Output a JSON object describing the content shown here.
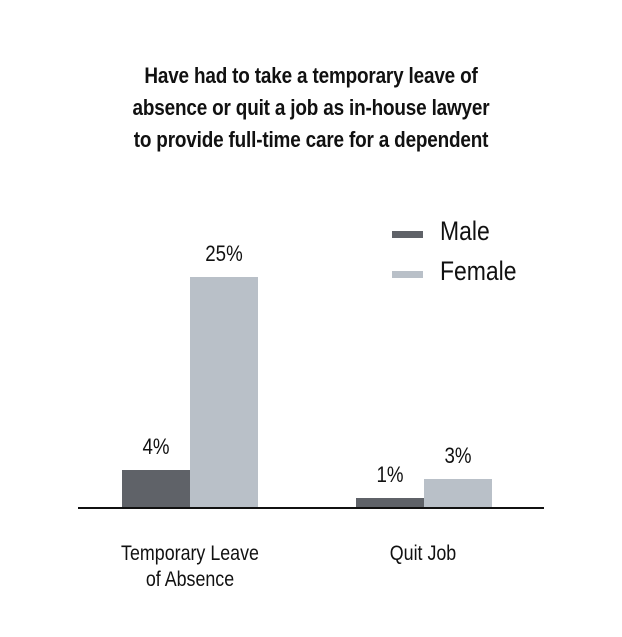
{
  "chart_data": {
    "type": "bar",
    "title": "Have had to take a temporary leave of absence or quit a job as in-house lawyer to provide full-time care for a dependent",
    "title_lines": [
      "Have had to take a temporary leave of",
      "absence or quit a job as in-house lawyer",
      "to provide full-time care for a dependent"
    ],
    "categories": [
      "Temporary Leave of Absence",
      "Quit Job"
    ],
    "category_lines": [
      [
        "Temporary Leave",
        "of Absence"
      ],
      [
        "Quit Job"
      ]
    ],
    "series": [
      {
        "name": "Male",
        "color": "#5f6268",
        "values": [
          4,
          1
        ],
        "labels": [
          "4%",
          "1%"
        ]
      },
      {
        "name": "Female",
        "color": "#b9c0c8",
        "values": [
          25,
          3
        ],
        "labels": [
          "25%",
          "3%"
        ]
      }
    ],
    "xlabel": "",
    "ylabel": "",
    "ylim": [
      0,
      25
    ],
    "grid": false,
    "legend_position": "upper right",
    "units": "%"
  }
}
